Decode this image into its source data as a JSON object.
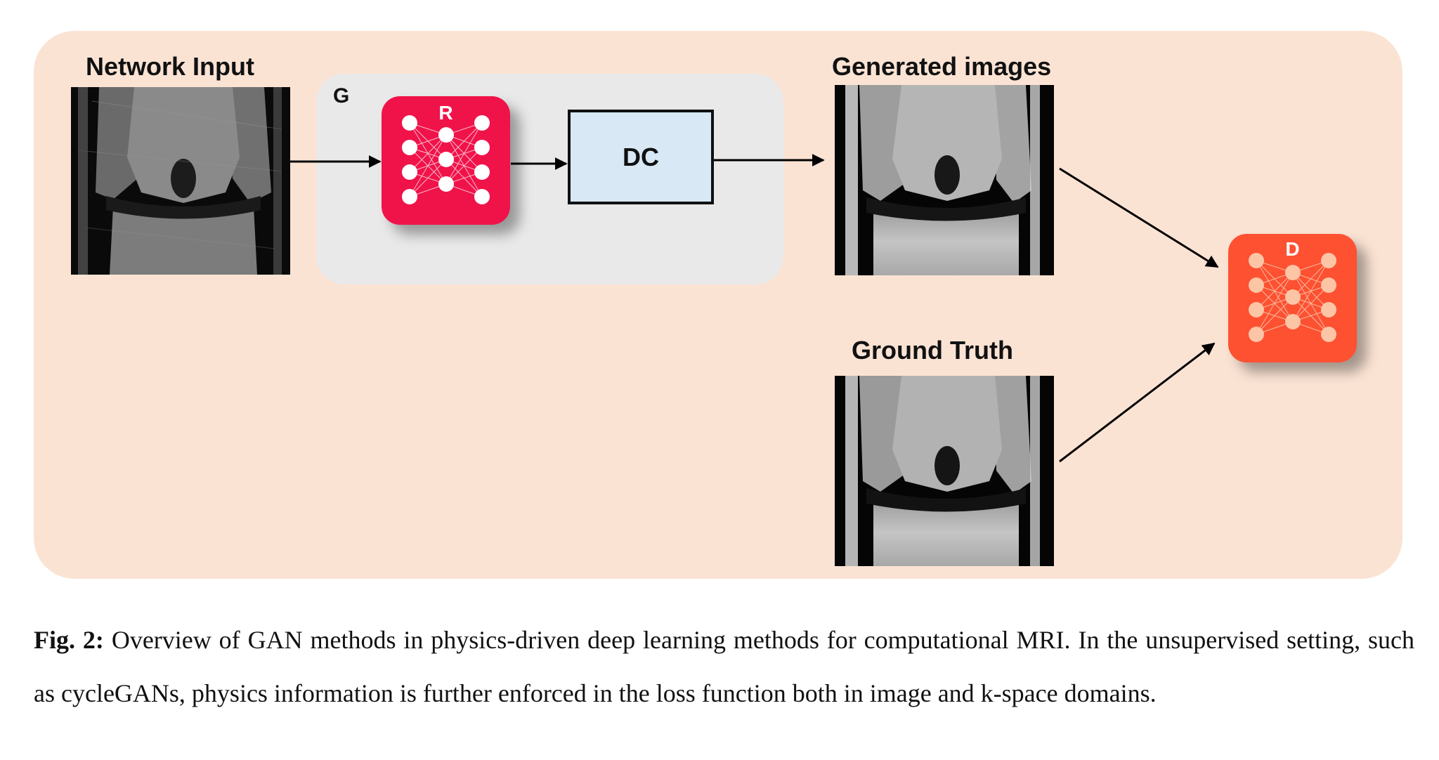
{
  "labels": {
    "network_input": "Network Input",
    "generator": "G",
    "regularizer": "R",
    "data_consistency": "DC",
    "generated_images": "Generated images",
    "ground_truth": "Ground Truth",
    "discriminator": "D"
  },
  "colors": {
    "panel_background": "#fbe3d4",
    "generator_box": "#e9e9e9",
    "regularizer_network": "#f0134a",
    "discriminator_network": "#fd5132",
    "dc_box": "#d8e8f4"
  },
  "caption": {
    "prefix": "Fig. 2:",
    "text": " Overview of GAN methods in physics-driven deep learning methods for computational MRI. In the unsupervised setting, such as cycleGANs, physics information is further enforced in the loss function both in image and k-space domains."
  }
}
